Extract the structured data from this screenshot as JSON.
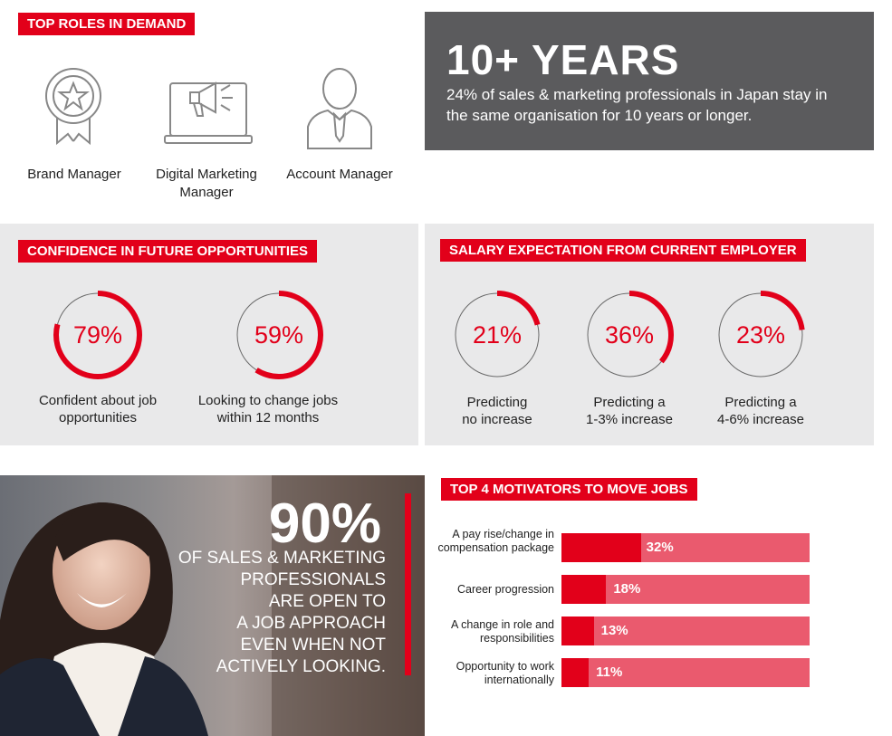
{
  "top_roles": {
    "tag": "TOP ROLES IN DEMAND",
    "roles": [
      {
        "label": "Brand Manager",
        "icon": "award-ribbon-icon"
      },
      {
        "label": "Digital Marketing Manager",
        "icon": "laptop-megaphone-icon"
      },
      {
        "label": "Account Manager",
        "icon": "businessman-icon"
      }
    ]
  },
  "years": {
    "headline": "10+ YEARS",
    "text": "24% of sales & marketing professionals in Japan stay in the same organisation for 10 years or longer."
  },
  "confidence": {
    "tag": "CONFIDENCE IN FUTURE OPPORTUNITIES",
    "items": [
      {
        "pct_label": "79%",
        "value": 79,
        "caption": "Confident about job opportunities"
      },
      {
        "pct_label": "59%",
        "value": 59,
        "caption": "Looking to change jobs within 12 months"
      }
    ]
  },
  "salary": {
    "tag": "SALARY EXPECTATION FROM CURRENT EMPLOYER",
    "items": [
      {
        "pct_label": "21%",
        "value": 21,
        "caption_line1": "Predicting",
        "caption_line2": "no increase"
      },
      {
        "pct_label": "36%",
        "value": 36,
        "caption_line1": "Predicting a",
        "caption_line2": "1-3% increase"
      },
      {
        "pct_label": "23%",
        "value": 23,
        "caption_line1": "Predicting a",
        "caption_line2": "4-6% increase"
      }
    ]
  },
  "open_to_approach": {
    "pct": "90%",
    "lines": [
      "OF SALES & MARKETING",
      "PROFESSIONALS",
      "ARE OPEN TO",
      "A JOB APPROACH",
      "EVEN WHEN NOT",
      "ACTIVELY LOOKING."
    ]
  },
  "motivators": {
    "tag": "TOP 4 MOTIVATORS TO MOVE JOBS",
    "items": [
      {
        "label": "A pay rise/change in compensation package",
        "pct_label": "32%",
        "value": 32
      },
      {
        "label": "Career progression",
        "pct_label": "18%",
        "value": 18
      },
      {
        "label": "A change in role and responsibilities",
        "pct_label": "13%",
        "value": 13
      },
      {
        "label": "Opportunity to work internationally",
        "pct_label": "11%",
        "value": 11
      }
    ]
  },
  "colors": {
    "accent": "#e2001a",
    "bar_track": "#ea5a6e",
    "dark_box": "#5b5b5d",
    "panel": "#e9e9ea"
  }
}
